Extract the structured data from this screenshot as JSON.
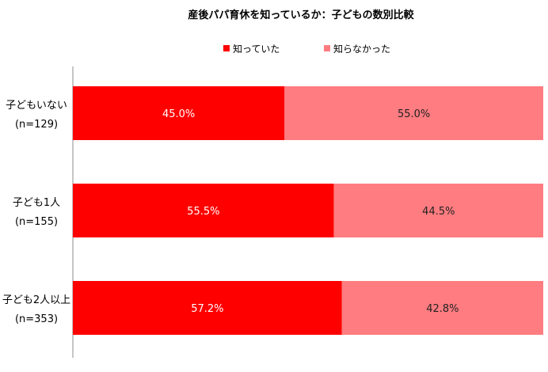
{
  "chart_data": {
    "type": "bar",
    "orientation": "horizontal",
    "stacked": "percent",
    "title": "産後パパ育休を知っているか：子どもの数別比較",
    "categories": [
      {
        "label": "子どもいない",
        "n": "(n=129)"
      },
      {
        "label": "子ども1人",
        "n": "(n=155)"
      },
      {
        "label": "子ども2人以上",
        "n": "(n=353)"
      }
    ],
    "series": [
      {
        "name": "知っていた",
        "color": "#FF0000",
        "label_color": "#ffffff",
        "values": [
          45.0,
          55.5,
          57.2
        ],
        "labels": [
          "45.0%",
          "55.5%",
          "57.2%"
        ]
      },
      {
        "name": "知らなかった",
        "color": "#FF7C80",
        "label_color": "#222222",
        "values": [
          55.0,
          44.5,
          42.8
        ],
        "labels": [
          "55.0%",
          "44.5%",
          "42.8%"
        ]
      }
    ],
    "xlim": [
      0,
      100
    ],
    "legend_position": "top-center",
    "grid": false
  }
}
